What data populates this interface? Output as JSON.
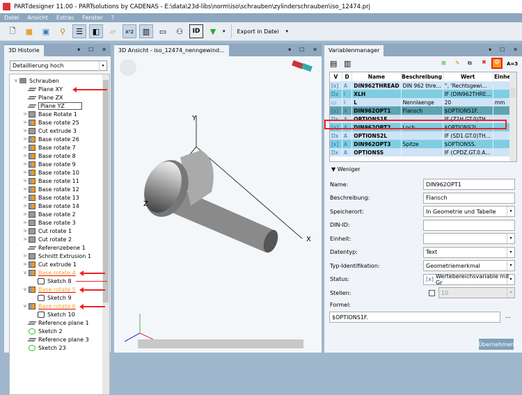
{
  "window": {
    "title": "PARTdesigner 11.00 - PARTsolutions by CADENAS - E:\\data\\23d-libs\\norm\\iso\\schrauben\\zylinderschrauben\\iso_12474.prj"
  },
  "menu": [
    "Datei",
    "Ansicht",
    "Extras",
    "Fenster",
    "?"
  ],
  "toolbar": {
    "icons": [
      "new-file-icon",
      "open-folder-icon",
      "save-icon",
      "search-icon",
      "list-view-icon",
      "3d-view-icon",
      "sketch-icon",
      "xyz-variables-icon",
      "table-icon",
      "id-options-icon",
      "glasses-icon",
      "id-icon",
      "triangle-menu-icon"
    ],
    "export_label": "Export in Datei"
  },
  "history": {
    "tab": "3D Historie",
    "filter": "Detaillierung hoch",
    "items": [
      {
        "label": "Schrauben",
        "depth": 0,
        "icon": "folder",
        "exp": "v"
      },
      {
        "label": "Plane XY",
        "depth": 1,
        "icon": "plane"
      },
      {
        "label": "Plane ZX",
        "depth": 1,
        "icon": "plane"
      },
      {
        "label": "Plane YZ",
        "depth": 1,
        "icon": "plane"
      },
      {
        "label": "Base Rotate 1",
        "depth": 1,
        "icon": "solid",
        "exp": ">"
      },
      {
        "label": "Base rotate 25",
        "depth": 1,
        "icon": "solido",
        "exp": ">"
      },
      {
        "label": "Cut extrude 3",
        "depth": 1,
        "icon": "solid",
        "exp": ">"
      },
      {
        "label": "Base rotate 26",
        "depth": 1,
        "icon": "solido",
        "exp": ">"
      },
      {
        "label": "Base rotate 7",
        "depth": 1,
        "icon": "solido",
        "exp": ">"
      },
      {
        "label": "Base rotate 8",
        "depth": 1,
        "icon": "solido",
        "exp": ">"
      },
      {
        "label": "Base rotate 9",
        "depth": 1,
        "icon": "solido",
        "exp": ">"
      },
      {
        "label": "Base rotate 10",
        "depth": 1,
        "icon": "solido",
        "exp": ">"
      },
      {
        "label": "Base rotate 11",
        "depth": 1,
        "icon": "solido",
        "exp": ">"
      },
      {
        "label": "Base rotate 12",
        "depth": 1,
        "icon": "solido",
        "exp": ">"
      },
      {
        "label": "Base rotate 13",
        "depth": 1,
        "icon": "solido",
        "exp": ">"
      },
      {
        "label": "Base rotate 14",
        "depth": 1,
        "icon": "solido",
        "exp": ">"
      },
      {
        "label": "Base rotate 2",
        "depth": 1,
        "icon": "solid",
        "exp": ">"
      },
      {
        "label": "Base rotate 3",
        "depth": 1,
        "icon": "solid",
        "exp": ">"
      },
      {
        "label": "Cut rotate 1",
        "depth": 1,
        "icon": "solid",
        "exp": ">"
      },
      {
        "label": "Cut rotate 2",
        "depth": 1,
        "icon": "solid",
        "exp": ">"
      },
      {
        "label": "Referenzebene 1",
        "depth": 1,
        "icon": "plane"
      },
      {
        "label": "Schnitt Extrusion 1",
        "depth": 1,
        "icon": "solid",
        "exp": ">"
      },
      {
        "label": "Cut extrude 1",
        "depth": 1,
        "icon": "solido",
        "exp": ">"
      },
      {
        "label": "Base rotate 4",
        "depth": 1,
        "icon": "solido",
        "exp": "v",
        "highlight": true
      },
      {
        "label": "Sketch 8",
        "depth": 2,
        "icon": "sketch"
      },
      {
        "label": "Base rotate 5",
        "depth": 1,
        "icon": "solido",
        "exp": "v",
        "highlight": true
      },
      {
        "label": "Sketch 9",
        "depth": 2,
        "icon": "sketch"
      },
      {
        "label": "Base rotate 6",
        "depth": 1,
        "icon": "solido",
        "exp": "v",
        "highlight": true
      },
      {
        "label": "Sketch 10",
        "depth": 2,
        "icon": "sketch"
      },
      {
        "label": "Reference plane 1",
        "depth": 1,
        "icon": "plane"
      },
      {
        "label": "Sketch 2",
        "depth": 1,
        "icon": "sketchg"
      },
      {
        "label": "Reference plane 3",
        "depth": 1,
        "icon": "plane"
      },
      {
        "label": "Sketch 23",
        "depth": 1,
        "icon": "sketchg"
      }
    ]
  },
  "view3d": {
    "tab": "3D Ansicht - iso_12474_nenngewind...",
    "axes": {
      "x": "X",
      "y": "Y",
      "z": "Z"
    }
  },
  "varmgr": {
    "tab": "Variablenmanager",
    "toolbar_extra": "A=3",
    "columns": [
      "V",
      "D",
      "Name",
      "Beschreibung",
      "Wert",
      "Einheit"
    ],
    "rows": [
      {
        "v": "[x]",
        "d": "A",
        "name": "DIN962THREAD",
        "desc": "DIN 962 thre...",
        "val": "'', 'Rechtsgewi...",
        "unit": "",
        "style": "a"
      },
      {
        "v": "Dx",
        "d": "I",
        "name": "XLH",
        "desc": "",
        "val": "IF (DIN962THRE...",
        "unit": "",
        "style": "b"
      },
      {
        "v": "▭",
        "d": "I",
        "name": "L",
        "desc": "Nennlaenge",
        "val": "20",
        "unit": "mm",
        "style": "a"
      },
      {
        "v": "[x]",
        "d": "A",
        "name": "DIN962OPT1",
        "desc": "Flansch",
        "val": "$OPTIONS1F.",
        "unit": "",
        "style": "sel"
      },
      {
        "v": "Dx",
        "d": "A",
        "name": "OPTIONS1F",
        "desc": "",
        "val": "IF (Z1H.GT.0)TH...",
        "unit": "",
        "style": "a"
      },
      {
        "v": "[x]",
        "d": "A",
        "name": "DIN962OPT2",
        "desc": "Loch",
        "val": "$OPTIONS2L.",
        "unit": "",
        "style": "b"
      },
      {
        "v": "Dx",
        "d": "A",
        "name": "OPTIONS2L",
        "desc": "",
        "val": "IF (SD1.GT.0)TH...",
        "unit": "",
        "style": "a"
      },
      {
        "v": "[x]",
        "d": "A",
        "name": "DIN962OPT3",
        "desc": "Spitze",
        "val": "$OPTIONSS.",
        "unit": "",
        "style": "b"
      },
      {
        "v": "Dx",
        "d": "A",
        "name": "OPTIONSS",
        "desc": "",
        "val": "IF (CPDZ.GT.0.A...",
        "unit": "",
        "style": "a"
      }
    ],
    "less_label": "Weniger",
    "form": {
      "name_label": "Name:",
      "name": "DIN962OPT1",
      "desc_label": "Beschreibung:",
      "desc": "Flansch",
      "store_label": "Speicherort:",
      "store": "In Geometrie und Tabelle",
      "din_label": "DIN-ID:",
      "din": "",
      "unit_label": "Einheit:",
      "unit": "",
      "type_label": "Datentyp:",
      "type": "Text",
      "typeid_label": "Typ-Identifikation:",
      "typeid": "Geometriemerkmal",
      "status_label": "Status:",
      "status": "Wertebereichsvariable mit Gr",
      "digits_label": "Stellen:",
      "digits": "10",
      "formula_label": "Formel:",
      "formula": "$OPTIONS1F.",
      "more": "...",
      "apply": "Übernehmen"
    }
  },
  "colors": {
    "highlight": "#f5a623",
    "annotation": "#e22222",
    "selected_row": "#5ea3b0"
  }
}
